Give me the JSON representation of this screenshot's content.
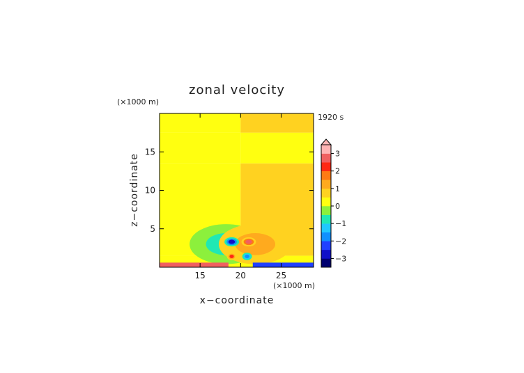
{
  "chart_data": {
    "type": "heatmap",
    "title": "zonal velocity",
    "xlabel": "x−coordinate",
    "ylabel": "z−coordinate",
    "x_unit": "(×1000 m)",
    "y_unit": "(×1000 m)",
    "time_label": "1920 s",
    "xlim": [
      10,
      29
    ],
    "ylim": [
      0,
      20
    ],
    "x_ticks": [
      15,
      20,
      25
    ],
    "y_ticks": [
      5,
      10,
      15
    ],
    "colorbar": {
      "ticks": [
        3,
        2,
        1,
        0,
        -1,
        -2,
        -3
      ],
      "tick_labels": [
        "3",
        "2",
        "1",
        "0",
        "−1",
        "−2",
        "−3"
      ],
      "range": [
        -3.5,
        3.5
      ],
      "extend": "max"
    },
    "field_description": {
      "bands": [
        {
          "z_range": [
            0,
            1.5
          ],
          "x_range": [
            10,
            20
          ],
          "value": 0.1
        },
        {
          "z_range": [
            0,
            1.5
          ],
          "x_range": [
            20,
            29
          ],
          "value": 0.35
        },
        {
          "z_range": [
            1.5,
            13.5
          ],
          "x_range": [
            10,
            20
          ],
          "value": 0.2
        },
        {
          "z_range": [
            1.5,
            13.5
          ],
          "x_range": [
            20,
            29
          ],
          "value": 0.55
        },
        {
          "z_range": [
            13.5,
            17.5
          ],
          "x_range": [
            10,
            20
          ],
          "value": 0.0
        },
        {
          "z_range": [
            13.5,
            17.5
          ],
          "x_range": [
            20,
            29
          ],
          "value": 0.3
        },
        {
          "z_range": [
            17.5,
            20
          ],
          "x_range": [
            10,
            20
          ],
          "value": 0.2
        },
        {
          "z_range": [
            17.5,
            20
          ],
          "x_range": [
            20,
            29
          ],
          "value": 0.55
        }
      ],
      "features": [
        {
          "kind": "lobe",
          "x": 18.2,
          "z": 3.0,
          "rx": 4.5,
          "rz": 2.6,
          "value": -1.0
        },
        {
          "kind": "lobe",
          "x": 21.8,
          "z": 3.0,
          "rx": 4.5,
          "rz": 2.6,
          "value": 1.0
        },
        {
          "kind": "core",
          "x": 18.9,
          "z": 3.3,
          "rx": 0.9,
          "rz": 0.6,
          "value": -2.6
        },
        {
          "kind": "core",
          "x": 21.0,
          "z": 3.3,
          "rx": 0.9,
          "rz": 0.6,
          "value": 2.6
        },
        {
          "kind": "core",
          "x": 18.9,
          "z": 1.4,
          "rx": 0.6,
          "rz": 0.5,
          "value": 2.0
        },
        {
          "kind": "core",
          "x": 20.8,
          "z": 1.4,
          "rx": 0.6,
          "rz": 0.5,
          "value": -1.8
        },
        {
          "kind": "surface",
          "x_range": [
            10,
            18.5
          ],
          "z": 0.25,
          "value": 2.5
        },
        {
          "kind": "surface",
          "x_range": [
            21.5,
            29
          ],
          "z": 0.25,
          "value": -2.5
        }
      ]
    }
  },
  "colors": {
    "palette": [
      "#000070",
      "#1010c8",
      "#2040ff",
      "#1090ff",
      "#20c8ff",
      "#20e8b4",
      "#8cf03c",
      "#ffff10",
      "#ffd220",
      "#ffaa1e",
      "#ff7a14",
      "#ff2814",
      "#f06060",
      "#ffb4b4"
    ],
    "frame": "#000000"
  }
}
